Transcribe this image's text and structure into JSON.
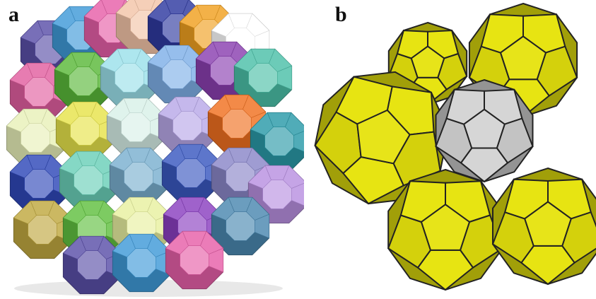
{
  "figure": {
    "panel_a": {
      "label": "a",
      "cell_colors": [
        "#5a4fa8",
        "#3f9ad8",
        "#e65fa8",
        "#f3c4a8",
        "#2f3aa0",
        "#f0a020",
        "#ffffff",
        "#e25fa0",
        "#5ab83a",
        "#9be0ea",
        "#7fb0e8",
        "#8a3fb0",
        "#4cc0a8",
        "#e8f0b8",
        "#e6e34a",
        "#d8f0e8",
        "#b8a8e8",
        "#f07020",
        "#2a9aa8",
        "#2f48b8",
        "#6ad0b8",
        "#7ab0d0",
        "#3a58c0",
        "#8a86c8",
        "#b890e0",
        "#c0a840",
        "#60c040",
        "#e8f0a0",
        "#8a3fc0",
        "#4a88b0"
      ]
    },
    "panel_b": {
      "label": "b",
      "face_color": "#e6e30d",
      "inner_color": "#d4d4d4"
    }
  }
}
